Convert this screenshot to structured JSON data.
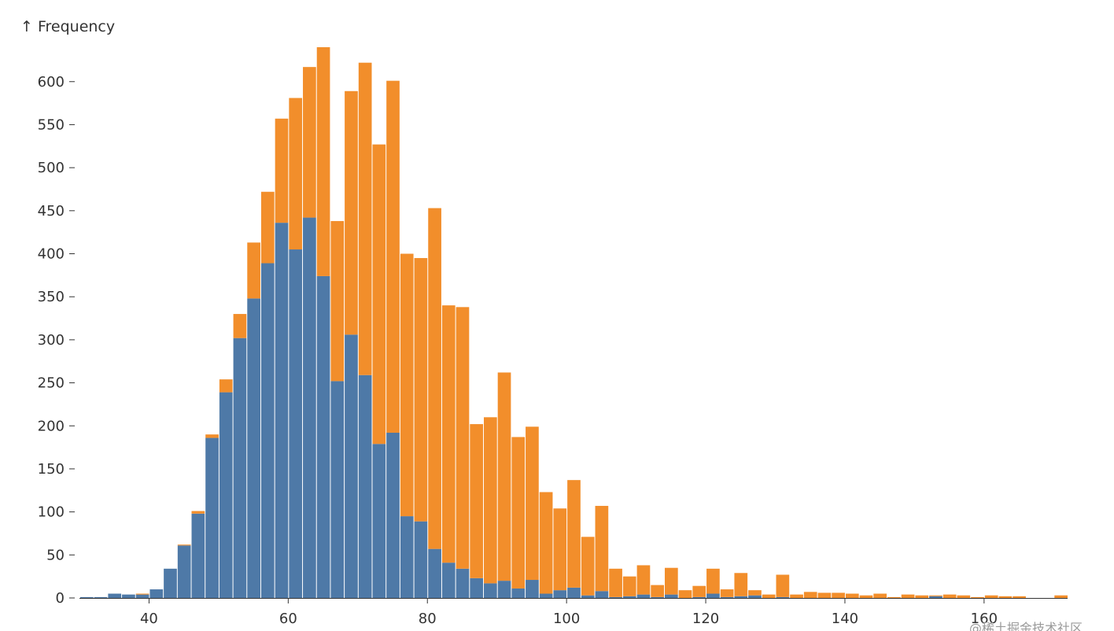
{
  "chart_data": {
    "type": "bar",
    "stacked": true,
    "ylabel": "↑ Frequency",
    "xlabel": "",
    "x_ticks": [
      "40",
      "60",
      "80",
      "100",
      "120",
      "140",
      "160"
    ],
    "y_ticks": [
      "0",
      "50",
      "100",
      "150",
      "200",
      "250",
      "300",
      "350",
      "400",
      "450",
      "500",
      "550",
      "600"
    ],
    "xlim": [
      30,
      172
    ],
    "ylim": [
      0,
      640
    ],
    "bin_width": 2,
    "bin_starts": [
      30,
      32,
      34,
      36,
      38,
      40,
      42,
      44,
      46,
      48,
      50,
      52,
      54,
      56,
      58,
      60,
      62,
      64,
      66,
      68,
      70,
      72,
      74,
      76,
      78,
      80,
      82,
      84,
      86,
      88,
      90,
      92,
      94,
      96,
      98,
      100,
      102,
      104,
      106,
      108,
      110,
      112,
      114,
      116,
      118,
      120,
      122,
      124,
      126,
      128,
      130,
      132,
      134,
      136,
      138,
      140,
      142,
      144,
      146,
      148,
      150,
      152,
      154,
      156,
      158,
      160,
      162,
      164,
      166,
      168,
      170
    ],
    "series": [
      {
        "name": "blue",
        "color": "#4e79a7",
        "values": [
          1,
          1,
          5,
          4,
          4,
          10,
          34,
          61,
          98,
          186,
          239,
          302,
          348,
          389,
          436,
          405,
          442,
          374,
          252,
          306,
          259,
          179,
          192,
          95,
          89,
          57,
          41,
          34,
          23,
          17,
          20,
          11,
          21,
          5,
          9,
          12,
          3,
          8,
          1,
          2,
          4,
          1,
          4,
          0,
          1,
          5,
          1,
          2,
          3,
          0,
          1,
          0,
          0,
          0,
          0,
          0,
          0,
          0,
          0,
          0,
          0,
          2,
          0,
          0,
          0,
          0,
          0,
          0,
          0,
          0,
          0
        ]
      },
      {
        "name": "orange",
        "color": "#f28e2b",
        "values": [
          0,
          0,
          0,
          0,
          1,
          0,
          0,
          1,
          3,
          4,
          15,
          28,
          65,
          83,
          121,
          176,
          175,
          266,
          186,
          283,
          363,
          348,
          409,
          305,
          306,
          396,
          299,
          304,
          179,
          193,
          242,
          176,
          178,
          118,
          95,
          125,
          68,
          99,
          33,
          23,
          34,
          14,
          31,
          9,
          13,
          29,
          9,
          27,
          6,
          4,
          26,
          4,
          7,
          6,
          6,
          5,
          3,
          5,
          1,
          4,
          3,
          1,
          4,
          3,
          1,
          3,
          2,
          2,
          0,
          0,
          3
        ]
      }
    ]
  },
  "watermark": "@稀土掘金技术社区"
}
